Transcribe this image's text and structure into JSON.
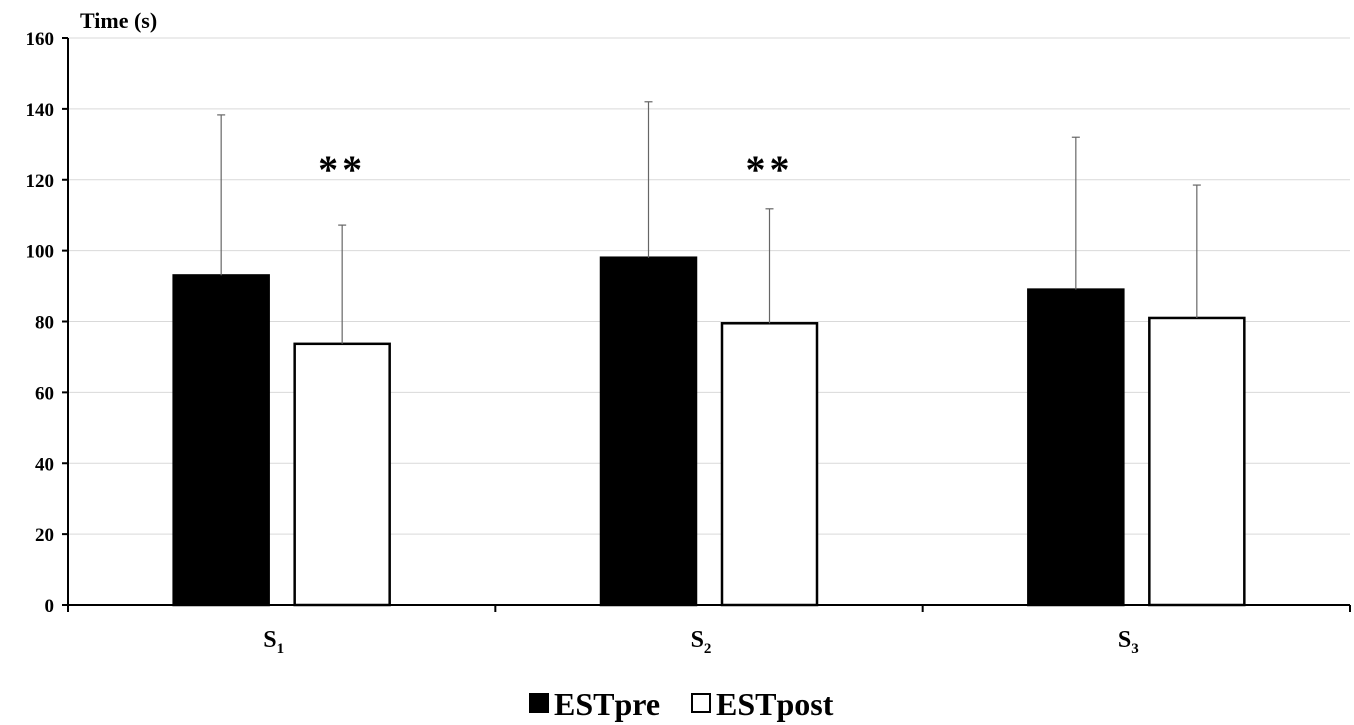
{
  "chart_data": {
    "type": "bar",
    "ylabel": "Time (s)",
    "ylim": [
      0,
      160
    ],
    "yticks": [
      "0",
      "20",
      "40",
      "60",
      "80",
      "100",
      "120",
      "140",
      "160"
    ],
    "grid": true,
    "categories": [
      {
        "main": "S",
        "sub": "1"
      },
      {
        "main": "S",
        "sub": "2"
      },
      {
        "main": "S",
        "sub": "3"
      }
    ],
    "series": [
      {
        "name": "ESTpre",
        "color": "#000000",
        "values": [
          93,
          98,
          89
        ],
        "error": [
          45.3,
          44,
          43
        ]
      },
      {
        "name": "ESTpost",
        "color": "#ffffff",
        "values": [
          73.7,
          79.5,
          81
        ],
        "error": [
          33.5,
          32.3,
          37.5
        ]
      }
    ],
    "annotations": [
      {
        "category": 0,
        "text": "**"
      },
      {
        "category": 1,
        "text": "**"
      }
    ],
    "legend": "bottom"
  }
}
